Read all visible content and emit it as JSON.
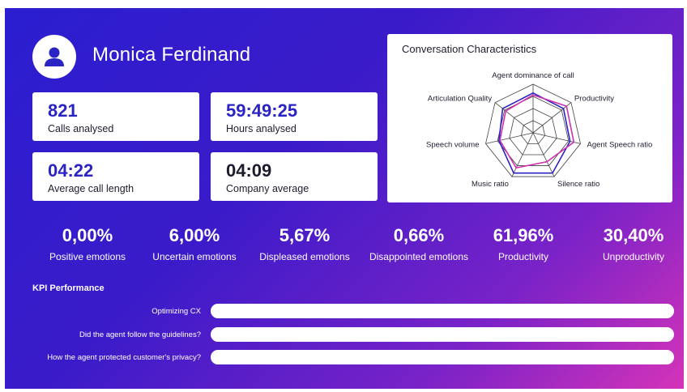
{
  "profile": {
    "name": "Monica Ferdinand",
    "avatar_icon": "user-icon"
  },
  "cards": [
    {
      "value": "821",
      "label": "Calls analysed"
    },
    {
      "value": "59:49:25",
      "label": "Hours analysed"
    },
    {
      "value": "04:22",
      "label": "Average call length"
    },
    {
      "value": "04:09",
      "label": "Company average"
    }
  ],
  "radar": {
    "title": "Conversation Characteristics",
    "axes": [
      "Agent dominance of call",
      "Productivity",
      "Agent Speech ratio",
      "Silence ratio",
      "Music ratio",
      "Speech volume",
      "Articulation Quality"
    ],
    "series": [
      {
        "color": "#2b24c4",
        "values": [
          0.82,
          0.8,
          0.78,
          0.92,
          0.92,
          0.72,
          0.8
        ]
      },
      {
        "color": "#d02fb0",
        "values": [
          0.78,
          0.88,
          0.86,
          0.66,
          0.8,
          0.7,
          0.72
        ]
      }
    ]
  },
  "stats": [
    {
      "value": "0,00%",
      "label": "Positive emotions"
    },
    {
      "value": "6,00%",
      "label": "Uncertain emotions"
    },
    {
      "value": "5,67%",
      "label": "Displeased emotions"
    },
    {
      "value": "0,66%",
      "label": "Disappointed emotions"
    },
    {
      "value": "61,96%",
      "label": "Productivity"
    },
    {
      "value": "30,40%",
      "label": "Unproductivity"
    }
  ],
  "kpi": {
    "title": "KPI Performance",
    "rows": [
      {
        "label": "Optimizing CX"
      },
      {
        "label": "Did the agent follow the guidelines?"
      },
      {
        "label": "How the agent protected customer's privacy?"
      }
    ]
  }
}
